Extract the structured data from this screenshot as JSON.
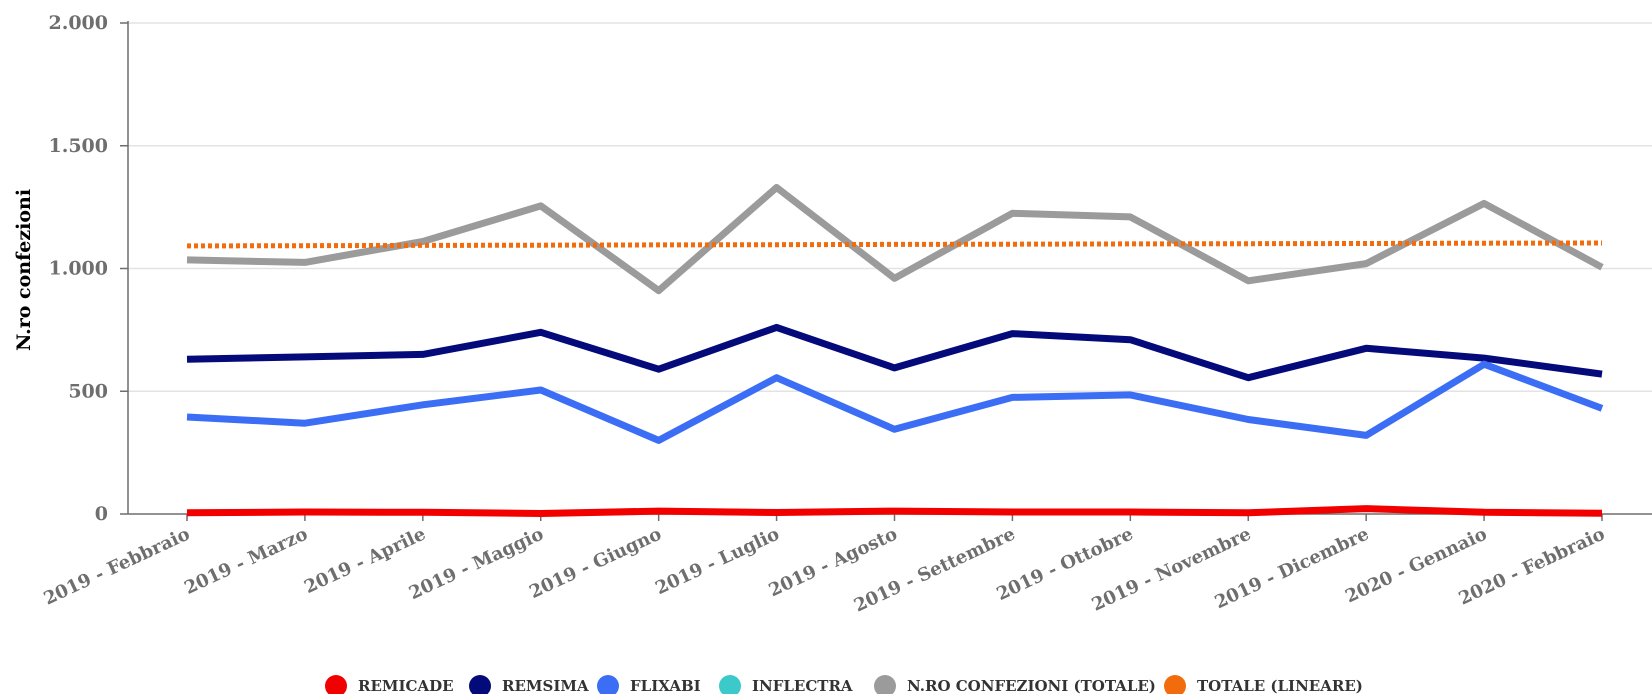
{
  "chart_data": {
    "type": "line",
    "title": "",
    "xlabel": "",
    "ylabel": "N.ro confezioni",
    "ylim": [
      0,
      2000
    ],
    "y_ticks": [
      0,
      500,
      1000,
      1500,
      2000
    ],
    "y_tick_labels": [
      "0",
      "500",
      "1.000",
      "1.500",
      "2.000"
    ],
    "grid": "horizontal",
    "legend_position": "bottom",
    "categories": [
      "2019 - Febbraio",
      "2019 - Marzo",
      "2019 - Aprile",
      "2019 - Maggio",
      "2019 - Giugno",
      "2019 - Luglio",
      "2019 - Agosto",
      "2019 - Settembre",
      "2019 - Ottobre",
      "2019 - Novembre",
      "2019 - Dicembre",
      "2020 - Gennaio",
      "2020 - Febbraio"
    ],
    "series": [
      {
        "name": "REMICADE",
        "color": "#f20000",
        "dashed": false,
        "values": [
          5,
          8,
          7,
          2,
          12,
          6,
          12,
          8,
          8,
          5,
          22,
          7,
          3
        ]
      },
      {
        "name": "REMSIMA",
        "color": "#050a7a",
        "dashed": false,
        "values": [
          630,
          640,
          650,
          740,
          590,
          760,
          595,
          735,
          710,
          555,
          675,
          635,
          570
        ]
      },
      {
        "name": "FLIXABI",
        "color": "#3b6ef5",
        "dashed": false,
        "values": [
          395,
          370,
          445,
          505,
          300,
          555,
          345,
          475,
          485,
          385,
          320,
          610,
          430
        ]
      },
      {
        "name": "INFLECTRA",
        "color": "#3cc9c9",
        "dashed": false,
        "values": [
          null,
          null,
          null,
          null,
          null,
          null,
          null,
          null,
          null,
          null,
          null,
          null,
          null
        ]
      },
      {
        "name": "N.RO CONFEZIONI (TOTALE)",
        "color": "#9b9b9b",
        "dashed": false,
        "values": [
          1035,
          1025,
          1110,
          1255,
          910,
          1330,
          960,
          1225,
          1210,
          950,
          1020,
          1265,
          1005
        ]
      },
      {
        "name": "TOTALE (LINEARE)",
        "color": "#f26c0d",
        "dashed": true,
        "values": [
          1092,
          1093,
          1094,
          1095,
          1096,
          1097,
          1098,
          1099,
          1100,
          1101,
          1102,
          1103,
          1104
        ]
      }
    ]
  }
}
